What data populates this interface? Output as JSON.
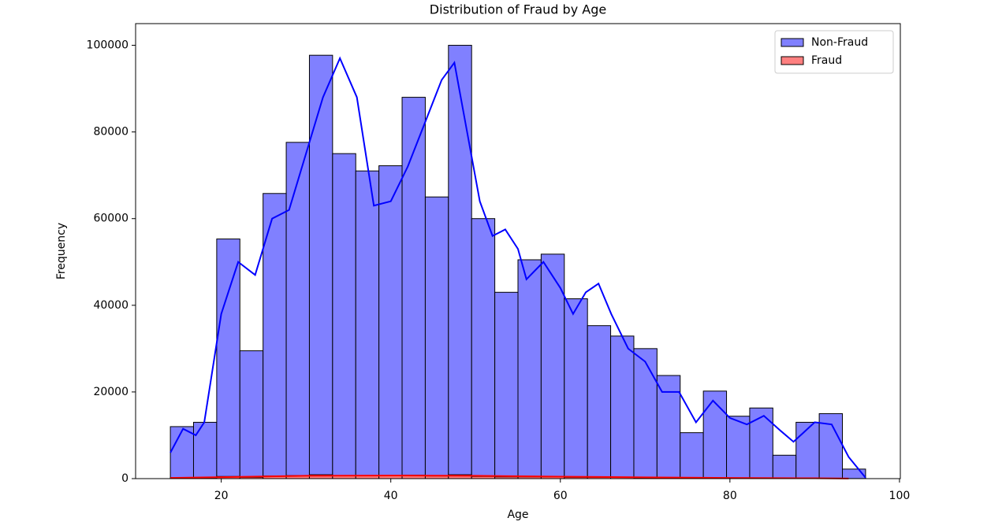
{
  "chart_data": {
    "type": "histogram",
    "title": "Distribution of Fraud by Age",
    "x_label": "Age",
    "y_label": "Frequency",
    "bins": [
      14,
      16.733,
      19.467,
      22.2,
      24.933,
      27.667,
      30.4,
      33.133,
      35.867,
      38.6,
      41.333,
      44.067,
      46.8,
      49.533,
      52.267,
      55,
      57.733,
      60.467,
      63.2,
      65.933,
      68.667,
      71.4,
      74.133,
      76.867,
      79.6,
      82.333,
      85.067,
      87.8,
      90.533,
      93.267,
      96
    ],
    "series": [
      {
        "name": "Non-Fraud",
        "color": "#8080ff",
        "line_color": "#0000ff",
        "values": [
          12000,
          13000,
          55300,
          29500,
          65800,
          77600,
          97700,
          75000,
          71000,
          72200,
          88000,
          65000,
          100000,
          60000,
          43000,
          50500,
          51800,
          41500,
          35300,
          32900,
          30000,
          23800,
          10600,
          20200,
          14400,
          16300,
          5400,
          13000,
          15000,
          2200
        ],
        "kde": {
          "x": [
            14,
            15.5,
            17,
            18,
            20,
            22,
            24,
            26,
            28,
            30,
            32,
            34,
            36,
            38,
            40,
            42,
            44,
            46,
            47.5,
            49,
            50.5,
            52,
            53.5,
            55,
            56,
            58,
            60,
            61.5,
            63,
            64.5,
            66,
            68,
            70,
            72,
            74,
            76,
            78,
            80,
            82,
            84,
            86,
            87.5,
            90,
            92,
            94,
            96
          ],
          "values": [
            6000,
            11500,
            10000,
            13000,
            38000,
            50000,
            47000,
            60000,
            62000,
            75000,
            88000,
            97000,
            88000,
            63000,
            64000,
            72000,
            82000,
            92000,
            96000,
            80000,
            64000,
            56000,
            57500,
            53000,
            46000,
            50000,
            44000,
            38000,
            43000,
            45000,
            38000,
            30000,
            27000,
            20000,
            20000,
            13000,
            18000,
            14000,
            12500,
            14500,
            11000,
            8500,
            13000,
            12500,
            5000,
            200
          ]
        }
      },
      {
        "name": "Fraud",
        "color": "#ff8080",
        "line_color": "#ff0000",
        "values": [
          200,
          200,
          500,
          300,
          600,
          700,
          900,
          700,
          700,
          700,
          800,
          600,
          900,
          500,
          400,
          400,
          400,
          300,
          300,
          300,
          200,
          200,
          100,
          150,
          100,
          100,
          50,
          80,
          80,
          20
        ],
        "kde": {
          "x": [
            14,
            20,
            30,
            40,
            50,
            60,
            70,
            80,
            90,
            94
          ],
          "values": [
            150,
            350,
            650,
            700,
            650,
            450,
            300,
            150,
            80,
            20
          ]
        }
      }
    ],
    "xlim": [
      9.9,
      100.1
    ],
    "ylim": [
      0,
      105000
    ],
    "xticks": [
      20,
      40,
      60,
      80,
      100
    ],
    "yticks": [
      0,
      20000,
      40000,
      60000,
      80000,
      100000
    ],
    "legend": "upper right"
  }
}
